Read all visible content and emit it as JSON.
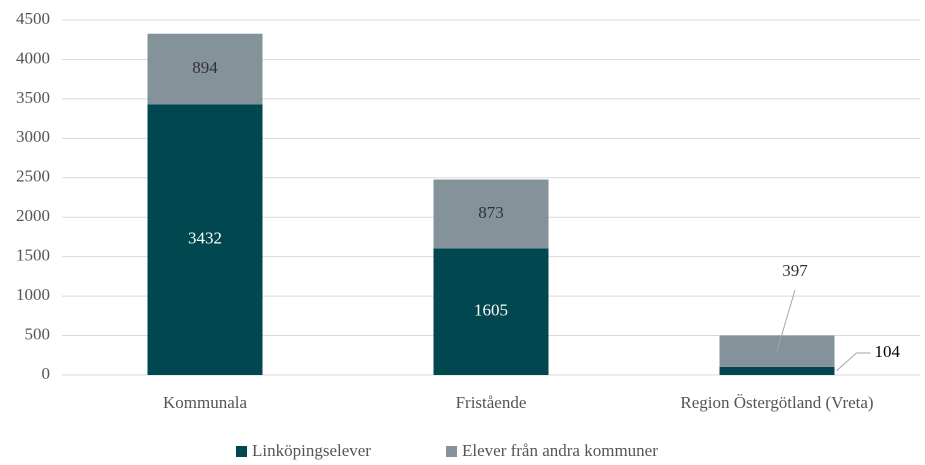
{
  "chart_data": {
    "type": "stacked_bar",
    "categories": [
      "Kommunala",
      "Fristående",
      "Region Östergötland (Vreta)"
    ],
    "series": [
      {
        "name": "Linköpingselever",
        "color": "#00474f",
        "values": [
          3432,
          1605,
          104
        ]
      },
      {
        "name": "Elever från andra kommuner",
        "color": "#84939a",
        "values": [
          894,
          873,
          397
        ]
      }
    ],
    "ylim": [
      0,
      4500
    ],
    "yticks": [
      0,
      500,
      1000,
      1500,
      2000,
      2500,
      3000,
      3500,
      4000,
      4500
    ],
    "grid": true,
    "legend": "bottom"
  }
}
